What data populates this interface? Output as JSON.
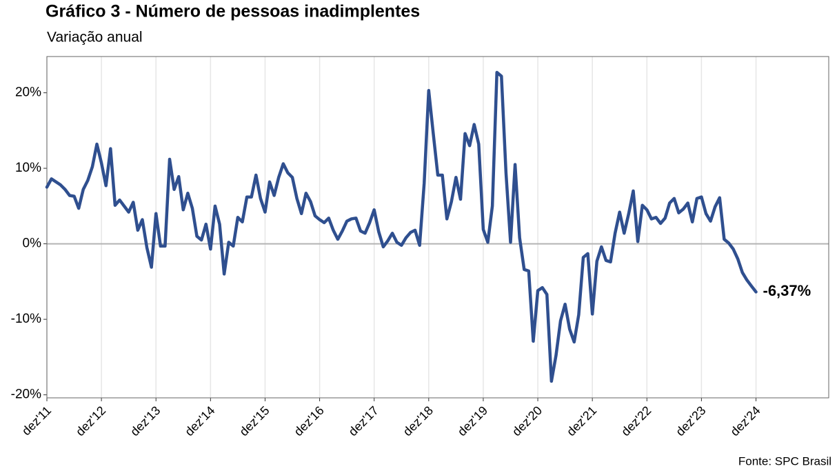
{
  "chart_data": {
    "type": "line",
    "title": "Gráfico 3 - Número de pessoas inadimplentes",
    "subtitle": "Variação anual",
    "source": "Fonte: SPC Brasil",
    "categories": [
      "dez'11",
      null,
      null,
      null,
      null,
      null,
      null,
      null,
      null,
      null,
      null,
      null,
      "dez'12",
      null,
      null,
      null,
      null,
      null,
      null,
      null,
      null,
      null,
      null,
      null,
      "dez'13",
      null,
      null,
      null,
      null,
      null,
      null,
      null,
      null,
      null,
      null,
      null,
      "dez'14",
      null,
      null,
      null,
      null,
      null,
      null,
      null,
      null,
      null,
      null,
      null,
      "dez'15",
      null,
      null,
      null,
      null,
      null,
      null,
      null,
      null,
      null,
      null,
      null,
      "dez'16",
      null,
      null,
      null,
      null,
      null,
      null,
      null,
      null,
      null,
      null,
      null,
      "dez'17",
      null,
      null,
      null,
      null,
      null,
      null,
      null,
      null,
      null,
      null,
      null,
      "dez'18",
      null,
      null,
      null,
      null,
      null,
      null,
      null,
      null,
      null,
      null,
      null,
      "dez'19",
      null,
      null,
      null,
      null,
      null,
      null,
      null,
      null,
      null,
      null,
      null,
      "dez'20",
      null,
      null,
      null,
      null,
      null,
      null,
      null,
      null,
      null,
      null,
      null,
      "dez'21",
      null,
      null,
      null,
      null,
      null,
      null,
      null,
      null,
      null,
      null,
      null,
      "dez'22",
      null,
      null,
      null,
      null,
      null,
      null,
      null,
      null,
      null,
      null,
      null,
      "dez'23",
      null,
      null,
      null,
      null,
      null,
      null,
      null,
      null,
      null,
      null,
      null,
      "dez'24"
    ],
    "series": [
      {
        "color": "#2f4f8f",
        "values": [
          7.5,
          8.6,
          8.2,
          7.8,
          7.2,
          6.4,
          6.3,
          4.7,
          7.2,
          8.4,
          10.2,
          13.2,
          10.7,
          7.7,
          12.6,
          5.1,
          5.8,
          5.0,
          4.2,
          5.5,
          1.8,
          3.2,
          -0.5,
          -3.1,
          4.0,
          -0.3,
          -0.3,
          11.2,
          7.2,
          8.9,
          4.5,
          6.7,
          4.7,
          1.0,
          0.5,
          2.6,
          -0.7,
          5.0,
          2.6,
          -4.0,
          0.2,
          -0.3,
          3.5,
          2.9,
          6.2,
          6.2,
          9.1,
          6.0,
          4.2,
          8.2,
          6.4,
          8.8,
          10.6,
          9.4,
          8.8,
          6.0,
          4.0,
          6.7,
          5.6,
          3.7,
          3.2,
          2.8,
          3.4,
          1.8,
          0.6,
          1.7,
          3.0,
          3.3,
          3.4,
          1.7,
          1.4,
          2.8,
          4.5,
          1.6,
          -0.4,
          0.4,
          1.4,
          0.2,
          -0.2,
          0.8,
          1.5,
          1.8,
          -0.2,
          8.0,
          20.3,
          14.6,
          9.1,
          9.1,
          3.3,
          5.6,
          8.8,
          5.9,
          14.6,
          13.0,
          15.8,
          13.2,
          1.9,
          0.2,
          5.0,
          22.7,
          22.2,
          9.4,
          0.2,
          10.5,
          0.8,
          -3.4,
          -3.6,
          -12.9,
          -6.2,
          -5.8,
          -6.7,
          -18.2,
          -14.8,
          -10.2,
          -8.0,
          -11.3,
          -13.0,
          -9.4,
          -1.8,
          -1.3,
          -9.3,
          -2.3,
          -0.4,
          -2.2,
          -2.4,
          1.4,
          4.2,
          1.4,
          4.0,
          7.0,
          0.3,
          5.1,
          4.5,
          3.3,
          3.5,
          2.7,
          3.4,
          5.4,
          6.0,
          4.1,
          4.6,
          5.4,
          2.9,
          6.0,
          6.2,
          4.0,
          3.0,
          4.9,
          6.1,
          0.6,
          0.1,
          -0.7,
          -2.0,
          -3.8,
          -4.8,
          -5.6,
          -6.37
        ],
        "value_labels": [
          null,
          null,
          null,
          null,
          null,
          null,
          null,
          null,
          null,
          null,
          null,
          null,
          null,
          null,
          null,
          null,
          null,
          null,
          null,
          null,
          null,
          null,
          null,
          null,
          null,
          null,
          null,
          null,
          null,
          null,
          null,
          null,
          null,
          null,
          null,
          null,
          null,
          null,
          null,
          null,
          null,
          null,
          null,
          null,
          null,
          null,
          null,
          null,
          null,
          null,
          null,
          null,
          null,
          null,
          null,
          null,
          null,
          null,
          null,
          null,
          null,
          null,
          null,
          null,
          null,
          null,
          null,
          null,
          null,
          null,
          null,
          null,
          null,
          null,
          null,
          null,
          null,
          null,
          null,
          null,
          null,
          null,
          null,
          null,
          null,
          null,
          null,
          null,
          null,
          null,
          null,
          null,
          null,
          null,
          null,
          null,
          null,
          null,
          null,
          null,
          null,
          null,
          null,
          null,
          null,
          null,
          null,
          null,
          null,
          null,
          null,
          null,
          null,
          null,
          null,
          null,
          null,
          null,
          null,
          null,
          null,
          null,
          null,
          null,
          null,
          null,
          null,
          null,
          null,
          null,
          null,
          null,
          null,
          null,
          null,
          null,
          null,
          null,
          null,
          null,
          null,
          null,
          null,
          null,
          null,
          null,
          null,
          null,
          null,
          null,
          null,
          null,
          null,
          null,
          null,
          null,
          "-6,37%"
        ]
      }
    ],
    "xlim": [
      0,
      172
    ],
    "ylim": [
      -20.4,
      24.8
    ],
    "yticks": [
      {
        "value": -20,
        "label": "-20%"
      },
      {
        "value": -10,
        "label": "-10%"
      },
      {
        "value": 0,
        "label": "0%"
      },
      {
        "value": 10,
        "label": "10%"
      },
      {
        "value": 20,
        "label": "20%"
      }
    ],
    "hline": 0,
    "grid": "x"
  }
}
